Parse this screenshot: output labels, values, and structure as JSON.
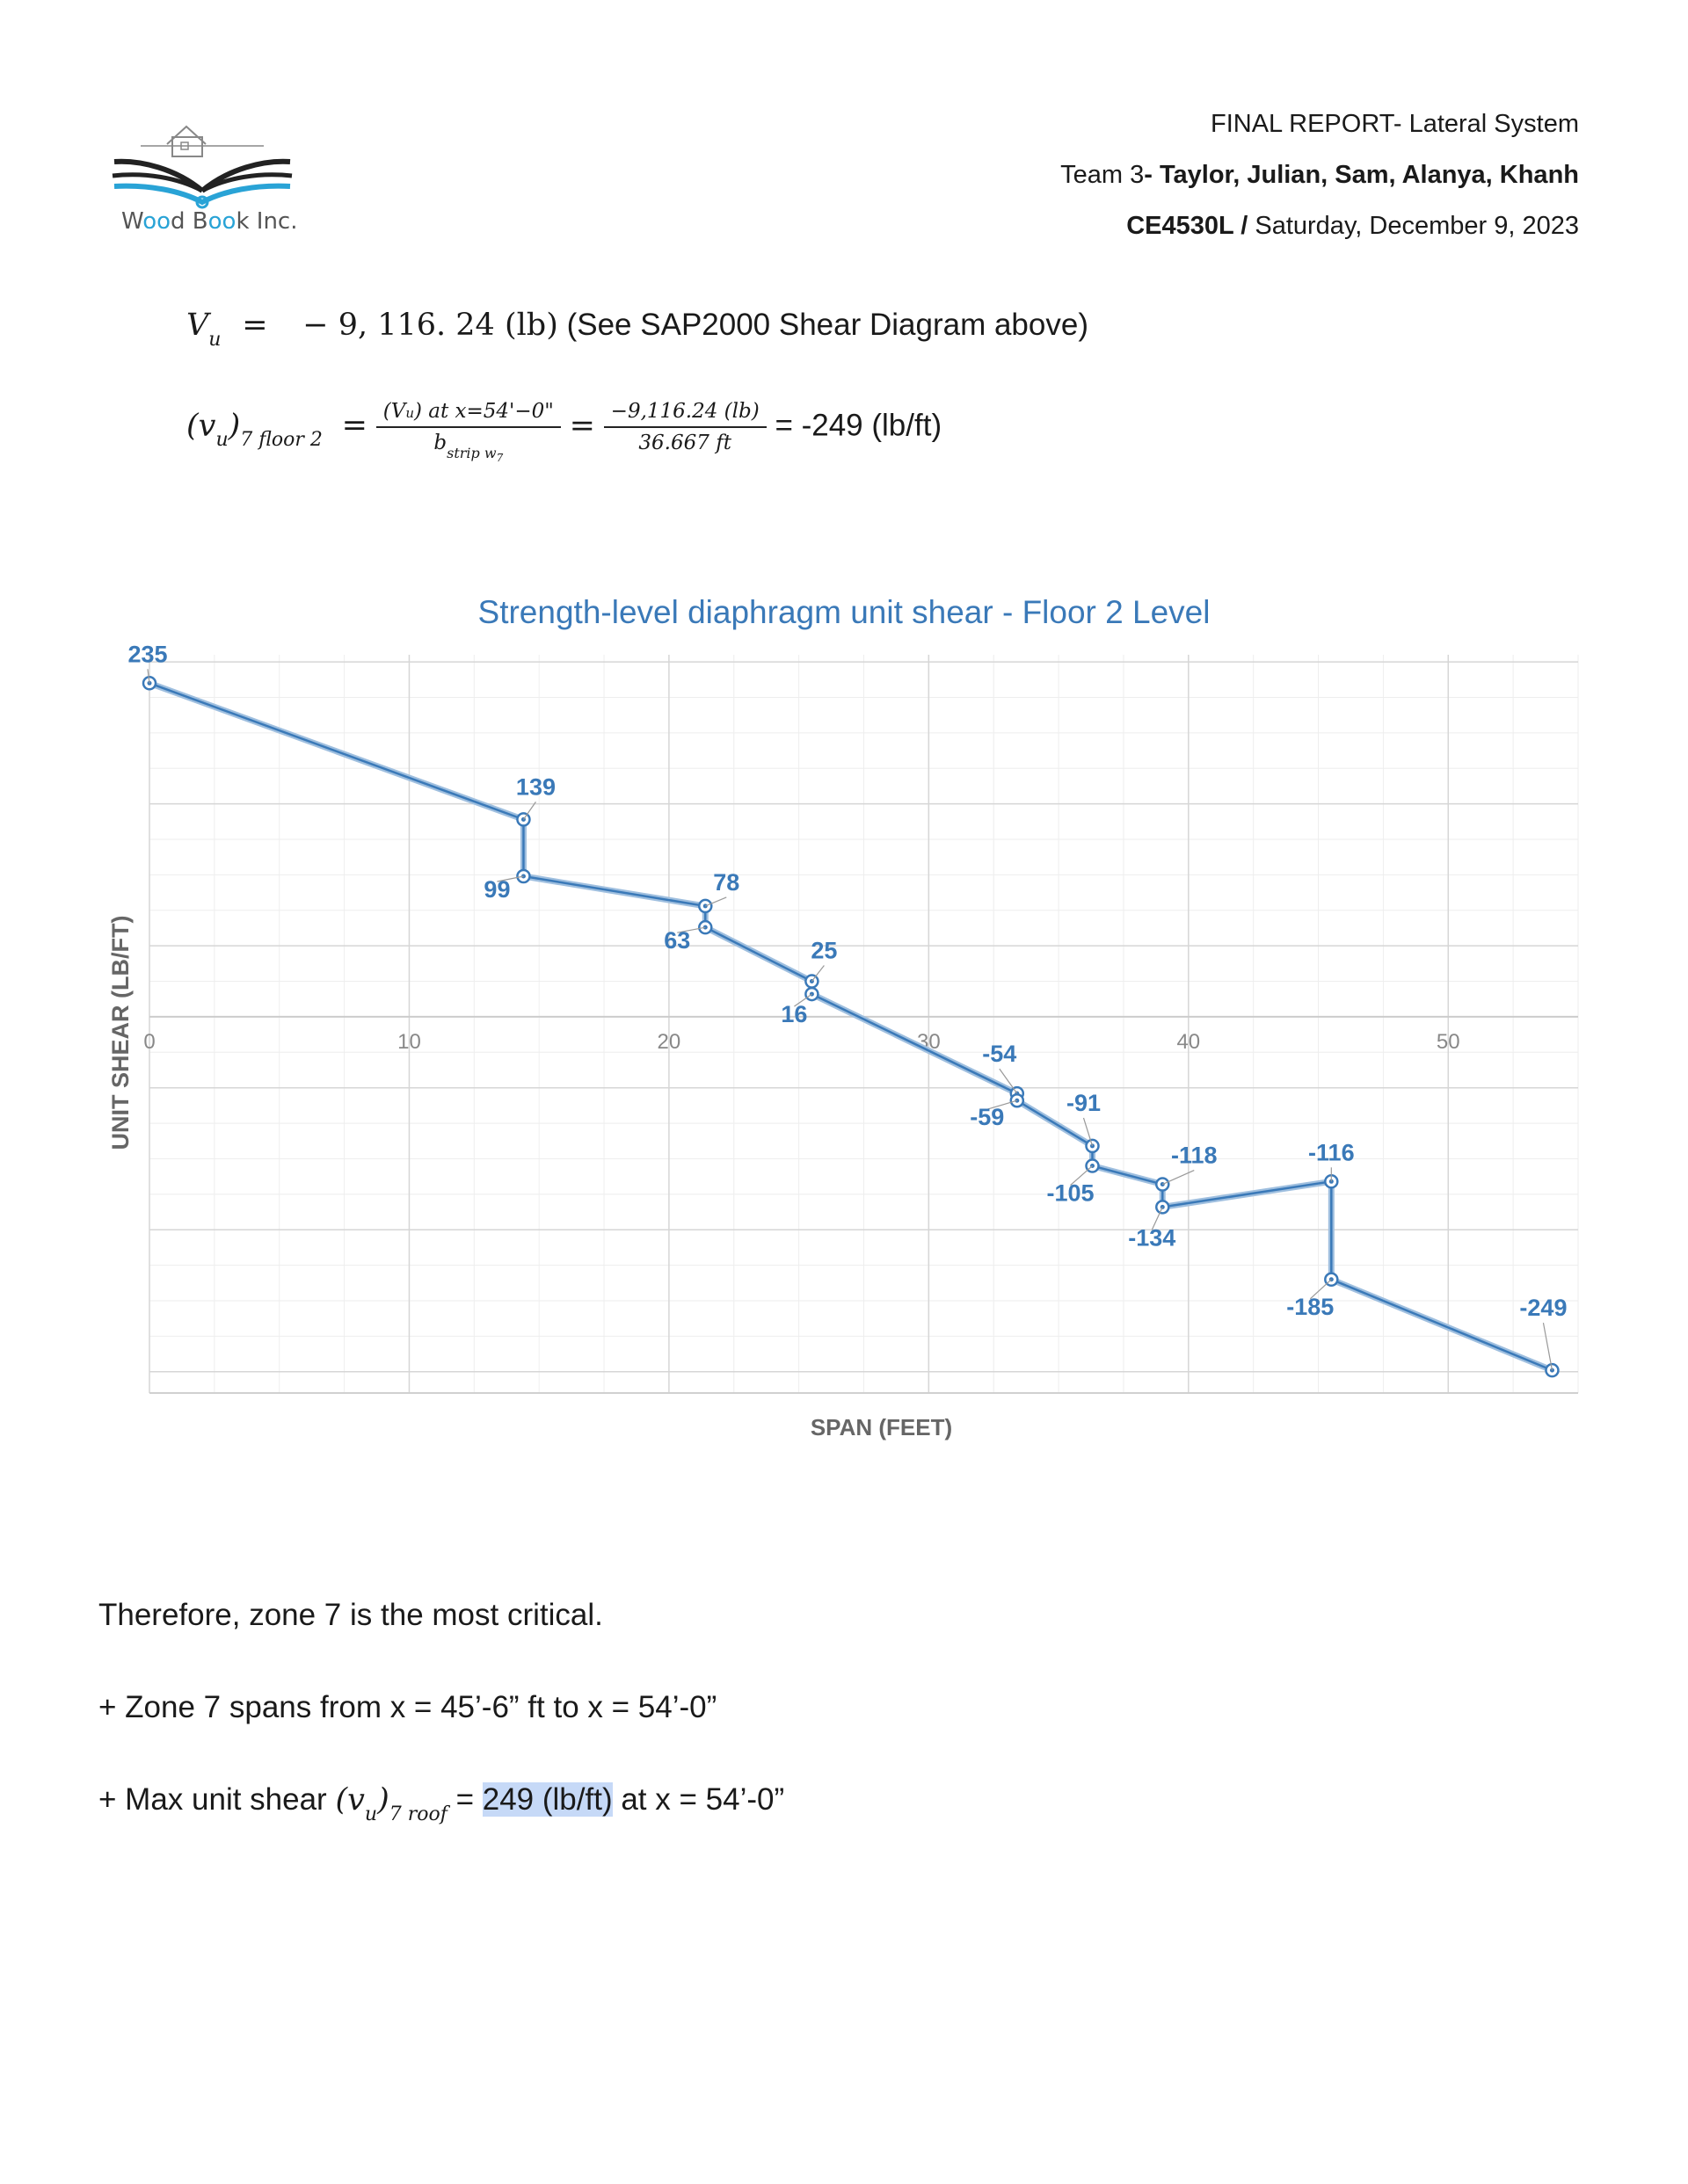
{
  "logo": {
    "text_a": "W",
    "text_b": "oo",
    "text_c": "d B",
    "text_d": "oo",
    "text_e": "k Inc."
  },
  "header": {
    "line1": "FINAL REPORT- Lateral System",
    "line2_a": "Team 3",
    "line2_b": "- Taylor, Julian, Sam, Alanya, Khanh",
    "line3_a": "CE4530L /",
    "line3_b": " Saturday, December 9, 2023"
  },
  "equations": {
    "vu_lhs": "V",
    "vu_sub": "u",
    "vu_eq": "=",
    "vu_value": "− 9, 116. 24 (lb)",
    "vu_note": "(See SAP2000 Shear Diagram above)",
    "v_lhs": "(v",
    "v_sub1": "u",
    "v_paren": ")",
    "v_sub2": "7 floor 2",
    "eq_sign": "=",
    "frac1_num": "(V",
    "frac1_num_sub": "u",
    "frac1_num_rest": ") at x=54'−0\"",
    "frac1_den": "b",
    "frac1_den_sub": "strip w",
    "frac1_den_sub2": "7",
    "frac2_num": "−9,116.24 (lb)",
    "frac2_den": "36.667 ft",
    "result": "= -249 (lb/ft)"
  },
  "chart_data": {
    "type": "line",
    "title": "Strength-level diaphragm unit shear - Floor 2 Level",
    "xlabel": "SPAN (FEET)",
    "ylabel": "UNIT SHEAR (LB/FT)",
    "xlim": [
      0,
      55
    ],
    "ylim": [
      -265,
      255
    ],
    "x_ticks": [
      0,
      10,
      20,
      30,
      40,
      50
    ],
    "grid": true,
    "color": "#3a79b8",
    "points": [
      {
        "x": 0,
        "y": 235,
        "label": "235",
        "lx": -2,
        "ly": -24
      },
      {
        "x": 14.4,
        "y": 139,
        "label": "139",
        "lx": 14,
        "ly": -28
      },
      {
        "x": 14.4,
        "y": 99,
        "label": "99",
        "lx": -30,
        "ly": 24
      },
      {
        "x": 21.4,
        "y": 78,
        "label": "78",
        "lx": 24,
        "ly": -18
      },
      {
        "x": 21.4,
        "y": 63,
        "label": "63",
        "lx": -32,
        "ly": 24
      },
      {
        "x": 25.5,
        "y": 25,
        "label": "25",
        "lx": 14,
        "ly": -26
      },
      {
        "x": 25.5,
        "y": 16,
        "label": "16",
        "lx": -20,
        "ly": 32
      },
      {
        "x": 33.4,
        "y": -54,
        "label": "-54",
        "lx": -20,
        "ly": -36
      },
      {
        "x": 33.4,
        "y": -59,
        "label": "-59",
        "lx": -34,
        "ly": 28
      },
      {
        "x": 36.3,
        "y": -91,
        "label": "-91",
        "lx": -10,
        "ly": -40
      },
      {
        "x": 36.3,
        "y": -105,
        "label": "-105",
        "lx": -25,
        "ly": 40
      },
      {
        "x": 39.0,
        "y": -118,
        "label": "-118",
        "lx": 36,
        "ly": -24
      },
      {
        "x": 39.0,
        "y": -134,
        "label": "-134",
        "lx": -12,
        "ly": 44
      },
      {
        "x": 45.5,
        "y": -116,
        "label": "-116",
        "lx": 0,
        "ly": -24
      },
      {
        "x": 45.5,
        "y": -185,
        "label": "-185",
        "lx": -24,
        "ly": 40
      },
      {
        "x": 54.0,
        "y": -249,
        "label": "-249",
        "lx": -10,
        "ly": -62
      }
    ]
  },
  "body": {
    "line1": "Therefore, zone 7 is the most critical.",
    "line2": "+ Zone 7 spans from x = 45’-6” ft to x = 54’-0”",
    "line3_a": "+ Max unit shear ",
    "line3_v": "(v",
    "line3_sub1": "u",
    "line3_paren": ")",
    "line3_sub2": "7 roof",
    "line3_b": " = ",
    "line3_highlight": "249 (lb/ft)",
    "line3_c": " at x = 54’-0”"
  }
}
